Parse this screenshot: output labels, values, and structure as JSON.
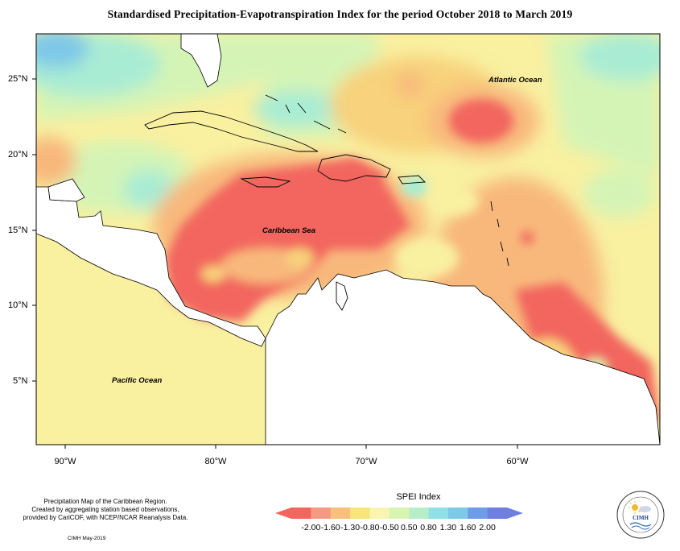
{
  "title": "Standardised Precipitation-Evapotranspiration Index for the period October 2018 to March 2019",
  "axes": {
    "lat_labels": [
      "25°N",
      "20°N",
      "15°N",
      "10°N",
      "5°N"
    ],
    "lon_labels": [
      "90°W",
      "80°W",
      "70°W",
      "60°W"
    ]
  },
  "map_labels": {
    "atlantic": "Atlantic Ocean",
    "caribbean": "Caribbean Sea",
    "pacific": "Pacific Ocean"
  },
  "credits": {
    "line1": "Precipitation Map of the Caribbean Region.",
    "line2": "Created by aggregating station based observations,",
    "line3": "provided by CariCOF, with NCEP/NCAR Reanalysis Data.",
    "stamp": "CIMH May-2019"
  },
  "legend": {
    "title": "SPEI Index",
    "ticks": [
      "-2.00",
      "-1.60",
      "-1.30",
      "-0.80",
      "-0.50",
      "0.50",
      "0.80",
      "1.30",
      "1.60",
      "2.00"
    ],
    "colors": [
      "#f2665e",
      "#f59a82",
      "#f8c07c",
      "#f7e47a",
      "#f9f5b0",
      "#d8f5b0",
      "#b6eec8",
      "#8fe1e6",
      "#7ec8e8",
      "#6e9de8",
      "#6f7fe0"
    ]
  },
  "logo": {
    "name": "CIMH"
  }
}
